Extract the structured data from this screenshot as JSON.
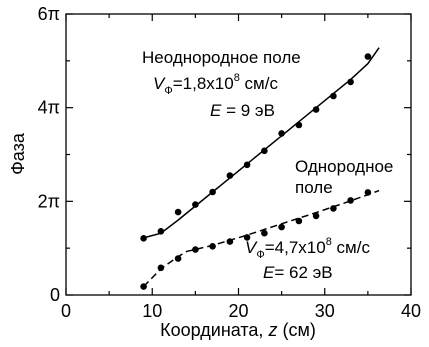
{
  "chart_data": {
    "type": "scatter",
    "xlabel": "Координата,",
    "xlabel_var": "z",
    "xlabel_unit": "(см)",
    "ylabel": "Фаза",
    "xlim": [
      0,
      40
    ],
    "ylim": [
      0,
      6
    ],
    "y_unit": "π",
    "x_ticks": [
      0,
      10,
      20,
      30,
      40
    ],
    "y_ticks": [
      {
        "value": 0,
        "label": "0"
      },
      {
        "value": 2,
        "label": "2π"
      },
      {
        "value": 4,
        "label": "4π"
      },
      {
        "value": 6,
        "label": "6π"
      }
    ],
    "grid": false,
    "series": [
      {
        "id": "nonuniform",
        "line_style": "solid",
        "x": [
          9,
          11,
          13,
          15,
          17,
          19,
          21,
          23,
          25,
          27,
          29,
          31,
          33,
          35
        ],
        "y": [
          1.21,
          1.36,
          1.77,
          1.93,
          2.2,
          2.55,
          2.78,
          3.08,
          3.45,
          3.63,
          3.96,
          4.25,
          4.55,
          5.09
        ],
        "fit": {
          "x": [
            9,
            11,
            13,
            15,
            17,
            19,
            21,
            23,
            25,
            27,
            29,
            31,
            33,
            35,
            36.3
          ],
          "y": [
            1.22,
            1.32,
            1.6,
            1.9,
            2.2,
            2.5,
            2.8,
            3.1,
            3.4,
            3.7,
            4.0,
            4.3,
            4.6,
            4.94,
            5.28
          ]
        }
      },
      {
        "id": "uniform",
        "line_style": "dashed",
        "x": [
          9,
          11,
          13,
          15,
          17,
          19,
          21,
          23,
          25,
          27,
          29,
          31,
          33,
          35
        ],
        "y": [
          0.18,
          0.58,
          0.78,
          0.97,
          1.04,
          1.14,
          1.23,
          1.32,
          1.45,
          1.58,
          1.69,
          1.85,
          2.02,
          2.19
        ],
        "fit": {
          "x": [
            9,
            11,
            13,
            14,
            17,
            21,
            25,
            29,
            33,
            36.3
          ],
          "y": [
            0.18,
            0.56,
            0.82,
            0.93,
            1.06,
            1.28,
            1.52,
            1.76,
            2.01,
            2.23
          ]
        }
      }
    ],
    "annotations": {
      "nonuniform_title": "Неоднородное поле",
      "nonuniform_velocity_var": "V",
      "nonuniform_velocity_sub": "Ф",
      "nonuniform_velocity_value": "=1,8x10",
      "nonuniform_velocity_exp": "8",
      "nonuniform_velocity_unit": " см/с",
      "nonuniform_energy_var": "E",
      "nonuniform_energy_value": " = 9 эВ",
      "uniform_title_line1": "Однородное",
      "uniform_title_line2": "поле",
      "uniform_velocity_var": "V",
      "uniform_velocity_sub": "Ф",
      "uniform_velocity_value": "=4,7x10",
      "uniform_velocity_exp": "8",
      "uniform_velocity_unit": " см/с",
      "uniform_energy_var": "E",
      "uniform_energy_value": "= 62 эВ"
    }
  }
}
